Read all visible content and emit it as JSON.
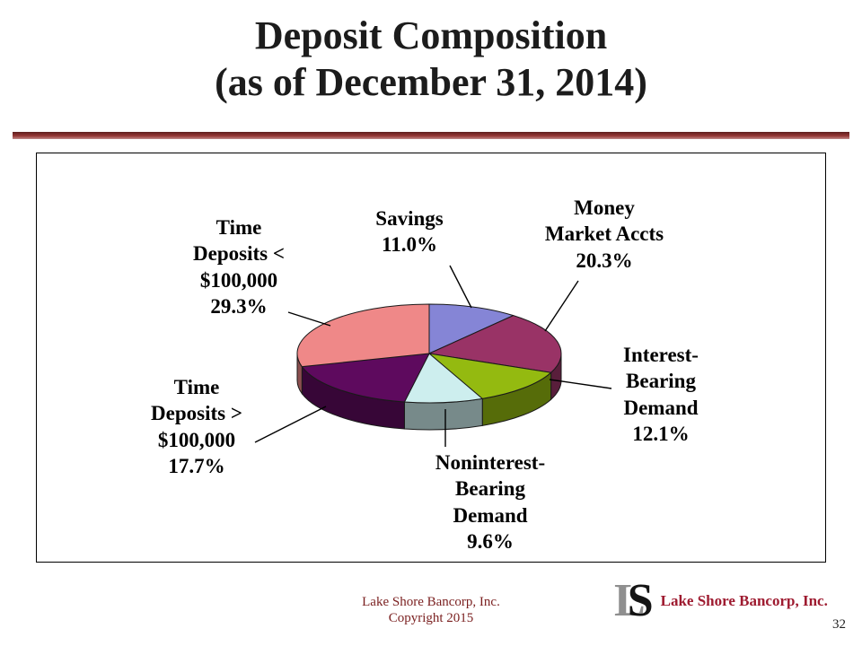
{
  "slide": {
    "title_line1": "Deposit Composition",
    "title_line2": "(as of December 31, 2014)",
    "footer_line1": "Lake Shore Bancorp, Inc.",
    "footer_line2": "Copyright 2015",
    "page_number": "32",
    "logo_l": "L",
    "logo_s": "S",
    "logo_text": "Lake Shore Bancorp, Inc.",
    "colors": {
      "divider": "#943634",
      "footer_text": "#7a1f1f",
      "logo_text_red": "#9e1b30",
      "logo_monogram_gray": "#8f8f8f",
      "title_text": "#1c1c1c"
    }
  },
  "chart_data": {
    "type": "pie",
    "title": "Deposit Composition (as of December 31, 2014)",
    "unit": "%",
    "style": "3d",
    "start_angle_deg": 0,
    "direction": "clockwise",
    "legend": "none",
    "slices": [
      {
        "label": "Savings",
        "value": 11.0,
        "color": "#8585d6",
        "callout": "Savings\n11.0%"
      },
      {
        "label": "Money Market Accts",
        "value": 20.3,
        "color": "#993366",
        "callout": "Money\nMarket Accts\n20.3%"
      },
      {
        "label": "Interest-Bearing Demand",
        "value": 12.1,
        "color": "#94ba10",
        "callout": "Interest-\nBearing\nDemand\n12.1%"
      },
      {
        "label": "Noninterest-Bearing Demand",
        "value": 9.6,
        "color": "#cdeeee",
        "callout": "Noninterest-\nBearing\nDemand\n9.6%"
      },
      {
        "label": "Time Deposits > $100,000",
        "value": 17.7,
        "color": "#5e0a5e",
        "callout": "Time\nDeposits >\n$100,000\n17.7%"
      },
      {
        "label": "Time Deposits < $100,000",
        "value": 29.3,
        "color": "#ef8888",
        "callout": "Time\nDeposits <\n$100,000\n29.3%"
      }
    ]
  }
}
